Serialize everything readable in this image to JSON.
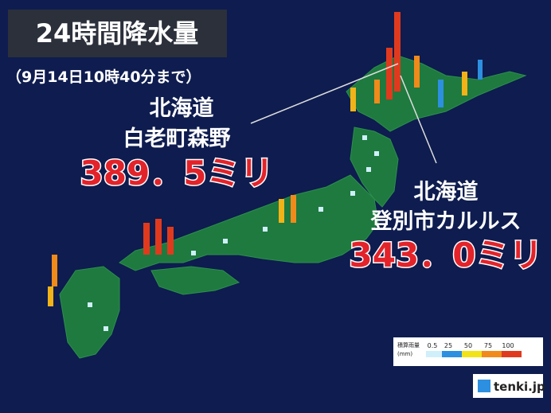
{
  "header": {
    "title": "24時間降水量",
    "subtitle": "（9月14日10時40分まで）"
  },
  "annotations": [
    {
      "region": "北海道",
      "place": "白老町森野",
      "amount": "389．5ミリ"
    },
    {
      "region": "北海道",
      "place": "登別市カルルス",
      "amount": "343．0ミリ"
    }
  ],
  "legend": {
    "title": "積算雨量",
    "unit": "(mm)",
    "ticks": [
      0.5,
      25,
      50,
      75,
      100
    ]
  },
  "logo": "tenki.jp"
}
